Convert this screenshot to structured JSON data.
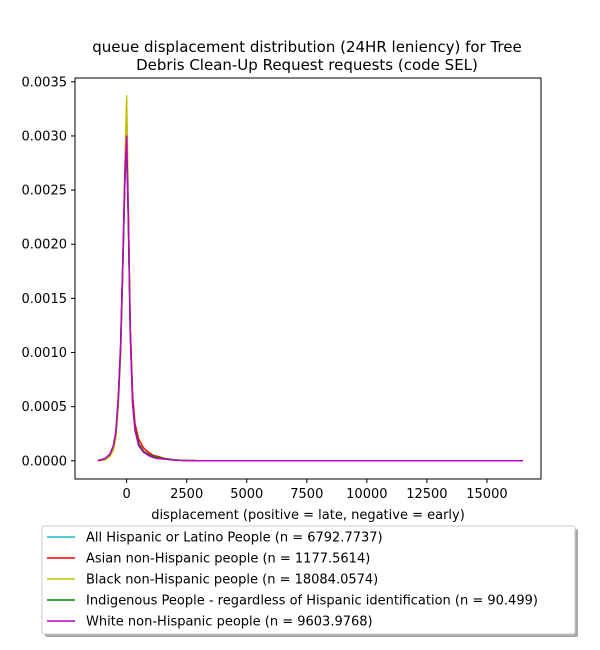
{
  "chart_data": {
    "type": "line",
    "title": [
      "queue displacement distribution (24HR leniency) for Tree",
      "Debris Clean-Up Request  requests (code SEL)"
    ],
    "xlabel": "displacement (positive = late, negative = early)",
    "ylabel": "",
    "xlim": [
      -2150,
      17250
    ],
    "ylim": [
      -0.000168,
      0.003535
    ],
    "xticks": [
      0,
      2500,
      5000,
      7500,
      10000,
      12500,
      15000
    ],
    "xtick_labels": [
      "0",
      "2500",
      "5000",
      "7500",
      "10000",
      "12500",
      "15000"
    ],
    "yticks": [
      0.0,
      0.0005,
      0.001,
      0.0015,
      0.002,
      0.0025,
      0.003,
      0.0035
    ],
    "ytick_labels": [
      "0.0000",
      "0.0005",
      "0.0010",
      "0.0015",
      "0.0020",
      "0.0025",
      "0.0030",
      "0.0035"
    ],
    "grid": false,
    "legend_position": "below plot",
    "series": [
      {
        "name": "All Hispanic or Latino People (n = 6792.7737)",
        "color": "#17becf",
        "x": [
          -1200,
          -900,
          -700,
          -550,
          -450,
          -350,
          -250,
          -150,
          -75,
          0,
          75,
          150,
          250,
          350,
          500,
          700,
          900,
          1100,
          1300,
          1600,
          2000,
          2500,
          3000,
          5000,
          10000,
          16500
        ],
        "y": [
          0.0,
          2e-05,
          6e-05,
          0.00013,
          0.00025,
          0.00055,
          0.00105,
          0.0019,
          0.0026,
          0.00297,
          0.0022,
          0.0012,
          0.00055,
          0.0003,
          0.00016,
          9e-05,
          6e-05,
          4e-05,
          3e-05,
          2e-05,
          8e-06,
          3e-06,
          0.0,
          0.0,
          0.0,
          0.0
        ]
      },
      {
        "name": "Asian non-Hispanic people (n = 1177.5614)",
        "color": "#ff0000",
        "x": [
          -1200,
          -900,
          -700,
          -550,
          -450,
          -350,
          -250,
          -150,
          -75,
          0,
          75,
          150,
          250,
          350,
          500,
          700,
          900,
          1100,
          1300,
          1600,
          2000,
          2500,
          3000,
          5000,
          10000,
          16500
        ],
        "y": [
          0.0,
          2e-05,
          5e-05,
          0.00012,
          0.00024,
          0.00053,
          0.00102,
          0.00188,
          0.00258,
          0.00295,
          0.0022,
          0.00125,
          0.0006,
          0.00034,
          0.0002,
          0.00012,
          8e-05,
          5e-05,
          4e-05,
          2e-05,
          8e-06,
          3e-06,
          0.0,
          0.0,
          0.0,
          0.0
        ]
      },
      {
        "name": "Black non-Hispanic people (n = 18084.0574)",
        "color": "#bfbf00",
        "x": [
          -1200,
          -900,
          -700,
          -550,
          -450,
          -350,
          -250,
          -150,
          -75,
          0,
          75,
          150,
          250,
          350,
          500,
          700,
          900,
          1100,
          1300,
          1600,
          2000,
          2500,
          3000,
          5000,
          10000,
          16500
        ],
        "y": [
          0.0,
          1e-05,
          4e-05,
          0.0001,
          0.00021,
          0.0005,
          0.001,
          0.0019,
          0.0027,
          0.00337,
          0.0023,
          0.0012,
          0.00052,
          0.00028,
          0.00015,
          9e-05,
          6e-05,
          4e-05,
          3e-05,
          2e-05,
          6e-06,
          2e-06,
          0.0,
          0.0,
          0.0,
          0.0
        ]
      },
      {
        "name": "Indigenous People - regardless of Hispanic identification (n = 90.499)",
        "color": "#008000",
        "x": [
          -1200,
          -900,
          -700,
          -550,
          -450,
          -350,
          -250,
          -150,
          -75,
          0,
          75,
          150,
          250,
          350,
          500,
          700,
          900,
          1100,
          1300,
          1600,
          2000,
          2500,
          3000,
          5000,
          10000,
          16500
        ],
        "y": [
          0.0,
          2e-05,
          6e-05,
          0.00014,
          0.00026,
          0.00056,
          0.00104,
          0.00188,
          0.00256,
          0.00292,
          0.00215,
          0.0012,
          0.00054,
          0.0003,
          0.00016,
          9e-05,
          6e-05,
          4e-05,
          3e-05,
          2e-05,
          8e-06,
          3e-06,
          0.0,
          0.0,
          0.0,
          0.0
        ]
      },
      {
        "name": "White non-Hispanic people (n = 9603.9768)",
        "color": "#bf00bf",
        "x": [
          -1200,
          -900,
          -700,
          -550,
          -450,
          -350,
          -250,
          -150,
          -75,
          0,
          75,
          150,
          250,
          350,
          500,
          700,
          900,
          1100,
          1300,
          1600,
          2000,
          2500,
          3000,
          5000,
          10000,
          16500
        ],
        "y": [
          0.0,
          2e-05,
          6e-05,
          0.00014,
          0.00027,
          0.00058,
          0.00108,
          0.00195,
          0.00265,
          0.003,
          0.0022,
          0.00118,
          0.00052,
          0.00028,
          0.00014,
          8e-05,
          5e-05,
          3e-05,
          2e-05,
          1.5e-05,
          6e-06,
          2e-06,
          0.0,
          0.0,
          0.0,
          0.0
        ]
      }
    ]
  }
}
